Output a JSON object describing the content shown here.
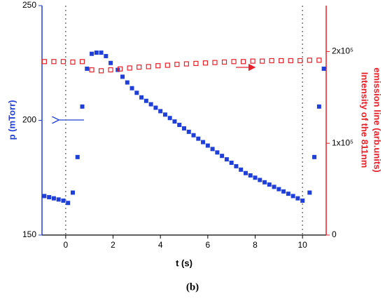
{
  "chart_data": {
    "type": "scatter",
    "xlabel": "t (s)",
    "ylabel": "p (mTorr)",
    "y2label": [
      "Intensity of the 811nm",
      "emission line (arb.units)"
    ],
    "caption": "(b)",
    "xlim": [
      -1,
      11
    ],
    "xticks": [
      0,
      2,
      4,
      6,
      8,
      10
    ],
    "ylim": [
      150,
      250
    ],
    "yticks": [
      150,
      200,
      250
    ],
    "y2lim": [
      0,
      250000
    ],
    "y2ticks": [
      0,
      {
        "value": 100000,
        "label": "1x10⁵"
      },
      {
        "value": 200000,
        "label": "2x10⁵"
      }
    ],
    "vlines": [
      0,
      10
    ],
    "series": [
      {
        "color": "#1f3fd8",
        "marker": "filled",
        "x": [
          -0.9,
          -0.7,
          -0.5,
          -0.3,
          -0.1,
          0.1,
          0.3,
          0.5,
          0.7,
          0.9,
          1.1,
          1.3,
          1.5,
          1.7,
          1.9,
          2.2,
          2.4,
          2.6,
          2.8,
          3.0,
          3.2,
          3.4,
          3.6,
          3.8,
          4.0,
          4.2,
          4.4,
          4.6,
          4.8,
          5.0,
          5.2,
          5.4,
          5.6,
          5.8,
          6.0,
          6.2,
          6.4,
          6.6,
          6.8,
          7.0,
          7.2,
          7.4,
          7.6,
          7.8,
          8.0,
          8.2,
          8.4,
          8.6,
          8.8,
          9.0,
          9.2,
          9.4,
          9.6,
          9.8,
          10.0,
          10.3,
          10.5,
          10.7,
          10.9
        ],
        "values": [
          167,
          166.5,
          166,
          165.5,
          165,
          164,
          168.5,
          184,
          206,
          222.5,
          229,
          229.5,
          229.5,
          228,
          225,
          222,
          219,
          216.5,
          214,
          212,
          210,
          208.5,
          207,
          205.5,
          204,
          202.5,
          201,
          199.5,
          198,
          196.5,
          195,
          193.5,
          192,
          190.5,
          189,
          187.5,
          186,
          184.5,
          183,
          181.5,
          180,
          178.5,
          177,
          176,
          175,
          174,
          173,
          172,
          171,
          170,
          169,
          168,
          167,
          166,
          165,
          168.5,
          184,
          206,
          222.5
        ]
      },
      {
        "color": "#e8202a",
        "marker": "open",
        "axis": "y2",
        "x": [
          -0.9,
          -0.5,
          -0.1,
          0.3,
          0.7,
          1.1,
          1.5,
          1.9,
          2.3,
          2.7,
          3.1,
          3.5,
          3.9,
          4.3,
          4.7,
          5.1,
          5.5,
          5.9,
          6.3,
          6.7,
          7.1,
          7.5,
          7.9,
          8.3,
          8.7,
          9.1,
          9.5,
          9.9,
          10.3,
          10.7
        ],
        "values": [
          189000,
          189000,
          189000,
          188500,
          189000,
          180000,
          179000,
          180000,
          181000,
          182000,
          183000,
          183500,
          184500,
          185000,
          186000,
          186500,
          187000,
          187500,
          188000,
          188500,
          189000,
          189000,
          189500,
          189500,
          190000,
          190000,
          190000,
          190000,
          190500,
          190500
        ]
      }
    ]
  }
}
